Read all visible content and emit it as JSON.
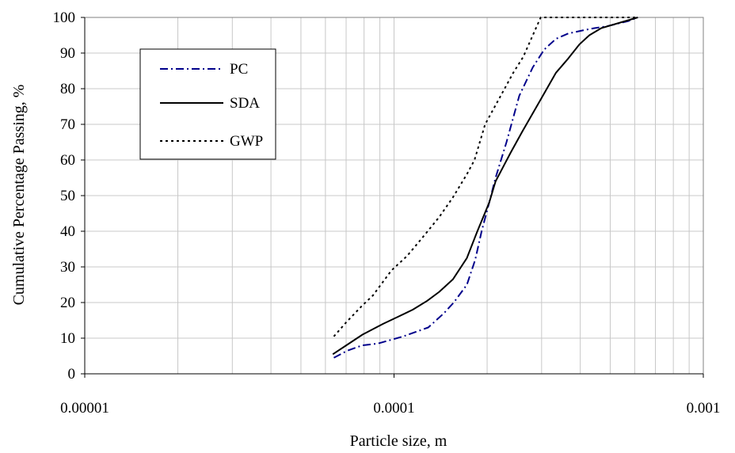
{
  "chart_data": {
    "type": "line",
    "xlabel": "Particle size, m",
    "ylabel": "Cumulative Percentage Passing,  %",
    "x_scale": "log",
    "xlim": [
      1e-05,
      0.001
    ],
    "ylim": [
      0,
      100
    ],
    "x_ticks": [
      "0.00001",
      "0.0001",
      "0.001"
    ],
    "y_ticks": [
      "0",
      "10",
      "20",
      "30",
      "40",
      "50",
      "60",
      "70",
      "80",
      "90",
      "100"
    ],
    "grid": true,
    "legend_position": "top-left",
    "series": [
      {
        "name": "PC",
        "color": "#00008b",
        "dash": "dash-dot",
        "points": [
          [
            6.39e-05,
            4.5
          ],
          [
            7.06e-05,
            6.5
          ],
          [
            7.91e-05,
            8
          ],
          [
            8.86e-05,
            8.5
          ],
          [
            0.000107,
            10.5
          ],
          [
            0.000129,
            13
          ],
          [
            0.000145,
            17
          ],
          [
            0.000156,
            20
          ],
          [
            0.000172,
            25
          ],
          [
            0.000183,
            32
          ],
          [
            0.000192,
            40
          ],
          [
            0.000203,
            48
          ],
          [
            0.000213,
            55
          ],
          [
            0.000231,
            65
          ],
          [
            0.000254,
            78
          ],
          [
            0.000281,
            86
          ],
          [
            0.000306,
            91
          ],
          [
            0.000334,
            94
          ],
          [
            0.000366,
            95.5
          ],
          [
            0.000414,
            96.5
          ],
          [
            0.000445,
            97
          ],
          [
            0.000486,
            97.5
          ],
          [
            0.000573,
            99
          ],
          [
            0.000614,
            100
          ]
        ]
      },
      {
        "name": "SDA",
        "color": "#000000",
        "dash": "solid",
        "points": [
          [
            6.34e-05,
            5.5
          ],
          [
            7.01e-05,
            8
          ],
          [
            7.91e-05,
            11
          ],
          [
            9.21e-05,
            14
          ],
          [
            0.000103,
            16
          ],
          [
            0.000115,
            18
          ],
          [
            0.000128,
            20.5
          ],
          [
            0.00014,
            23
          ],
          [
            0.000155,
            26.5
          ],
          [
            0.000172,
            32.5
          ],
          [
            0.000186,
            40
          ],
          [
            0.000203,
            48
          ],
          [
            0.000213,
            54
          ],
          [
            0.000238,
            62
          ],
          [
            0.00026,
            68
          ],
          [
            0.000287,
            74.5
          ],
          [
            0.000334,
            84.5
          ],
          [
            0.000366,
            88.5
          ],
          [
            0.000398,
            92.5
          ],
          [
            0.000428,
            95
          ],
          [
            0.000468,
            97
          ],
          [
            0.000614,
            100
          ]
        ]
      },
      {
        "name": "GWP",
        "color": "#000000",
        "dash": "dotted",
        "points": [
          [
            6.39e-05,
            10.5
          ],
          [
            7.01e-05,
            14.5
          ],
          [
            7.86e-05,
            19
          ],
          [
            8.55e-05,
            22
          ],
          [
            9.81e-05,
            29
          ],
          [
            0.00011,
            33
          ],
          [
            0.000123,
            38
          ],
          [
            0.00014,
            44
          ],
          [
            0.000155,
            49.5
          ],
          [
            0.000172,
            56
          ],
          [
            0.000182,
            60
          ],
          [
            0.000197,
            70
          ],
          [
            0.000218,
            77
          ],
          [
            0.000243,
            84.5
          ],
          [
            0.000262,
            89
          ],
          [
            0.000281,
            95
          ],
          [
            0.000298,
            100
          ],
          [
            0.000614,
            100
          ]
        ]
      }
    ]
  }
}
